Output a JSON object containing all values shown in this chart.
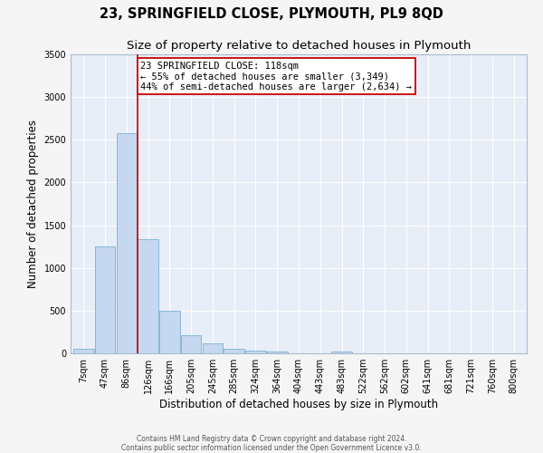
{
  "title": "23, SPRINGFIELD CLOSE, PLYMOUTH, PL9 8QD",
  "subtitle": "Size of property relative to detached houses in Plymouth",
  "xlabel": "Distribution of detached houses by size in Plymouth",
  "ylabel": "Number of detached properties",
  "bin_labels": [
    "7sqm",
    "47sqm",
    "86sqm",
    "126sqm",
    "166sqm",
    "205sqm",
    "245sqm",
    "285sqm",
    "324sqm",
    "364sqm",
    "404sqm",
    "443sqm",
    "483sqm",
    "522sqm",
    "562sqm",
    "602sqm",
    "641sqm",
    "681sqm",
    "721sqm",
    "760sqm",
    "800sqm"
  ],
  "bar_values": [
    50,
    1250,
    2580,
    1340,
    500,
    210,
    115,
    50,
    30,
    20,
    0,
    0,
    20,
    0,
    0,
    0,
    0,
    0,
    0,
    0,
    0
  ],
  "bar_color": "#c5d8f0",
  "bar_edge_color": "#7ab0d4",
  "marker_line_color": "#cc0000",
  "annotation_line1": "23 SPRINGFIELD CLOSE: 118sqm",
  "annotation_line2": "← 55% of detached houses are smaller (3,349)",
  "annotation_line3": "44% of semi-detached houses are larger (2,634) →",
  "annotation_box_facecolor": "#ffffff",
  "annotation_box_edgecolor": "#cc0000",
  "ylim": [
    0,
    3500
  ],
  "yticks": [
    0,
    500,
    1000,
    1500,
    2000,
    2500,
    3000,
    3500
  ],
  "fig_bg_color": "#f5f5f5",
  "ax_bg_color": "#e8eef7",
  "grid_color": "#ffffff",
  "footer_line1": "Contains HM Land Registry data © Crown copyright and database right 2024.",
  "footer_line2": "Contains public sector information licensed under the Open Government Licence v3.0.",
  "title_fontsize": 10.5,
  "subtitle_fontsize": 9.5,
  "axis_label_fontsize": 8.5,
  "tick_fontsize": 7,
  "annotation_fontsize": 7.5,
  "footer_fontsize": 5.5
}
